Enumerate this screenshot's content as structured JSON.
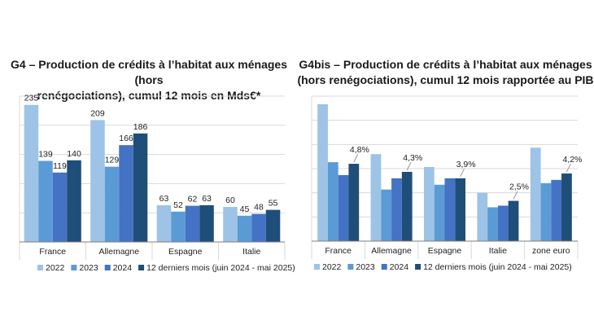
{
  "colors": {
    "series_2022": "#9dc3e6",
    "series_2023": "#5b9bd5",
    "series_2024": "#4472c4",
    "series_12m": "#1f4e79",
    "grid": "#d9d9d9",
    "axis": "#7f7f7f"
  },
  "chart_data": [
    {
      "id": "G4",
      "type": "bar",
      "title_line1": "G4 – Production de crédits à l’habitat aux ménages (hors",
      "title_line2": "renégociations), cumul 12 mois en Mds€*",
      "categories": [
        "France",
        "Allemagne",
        "Espagne",
        "Italie"
      ],
      "series": [
        {
          "name": "2022",
          "values": [
            235,
            209,
            63,
            60
          ]
        },
        {
          "name": "2023",
          "values": [
            139,
            129,
            52,
            45
          ]
        },
        {
          "name": "2024",
          "values": [
            119,
            166,
            62,
            48
          ]
        },
        {
          "name": "12 derniers mois (juin 2024 - mai 2025)",
          "values": [
            140,
            186,
            63,
            55
          ]
        }
      ],
      "value_labels": [
        [
          "235",
          "139",
          "119",
          "140"
        ],
        [
          "209",
          "129",
          "166",
          "186"
        ],
        [
          "63",
          "52",
          "62",
          "63"
        ],
        [
          "60",
          "45",
          "48",
          "55"
        ]
      ],
      "ylim": [
        0,
        250
      ],
      "grid": true,
      "legend_position": "bottom"
    },
    {
      "id": "G4bis",
      "type": "bar",
      "title_line1": "G4bis – Production de crédits à l’habitat aux ménages",
      "title_line2": "(hors renégociations), cumul 12 mois rapportée au PIB",
      "categories": [
        "France",
        "Allemagne",
        "Espagne",
        "Italie",
        "zone euro"
      ],
      "series": [
        {
          "name": "2022",
          "values": [
            8.5,
            5.4,
            4.6,
            3.0,
            5.8
          ]
        },
        {
          "name": "2023",
          "values": [
            4.9,
            3.2,
            3.5,
            2.1,
            3.6
          ]
        },
        {
          "name": "2024",
          "values": [
            4.1,
            3.9,
            3.9,
            2.2,
            3.8
          ]
        },
        {
          "name": "12 derniers mois (juin 2024 - mai 2025)",
          "values": [
            4.8,
            4.3,
            3.9,
            2.5,
            4.2
          ]
        }
      ],
      "last_series_labels": [
        "4,8%",
        "4,3%",
        "3,9%",
        "2,5%",
        "4,2%"
      ],
      "ylim": [
        0,
        9
      ],
      "grid": true,
      "legend_position": "bottom"
    }
  ]
}
